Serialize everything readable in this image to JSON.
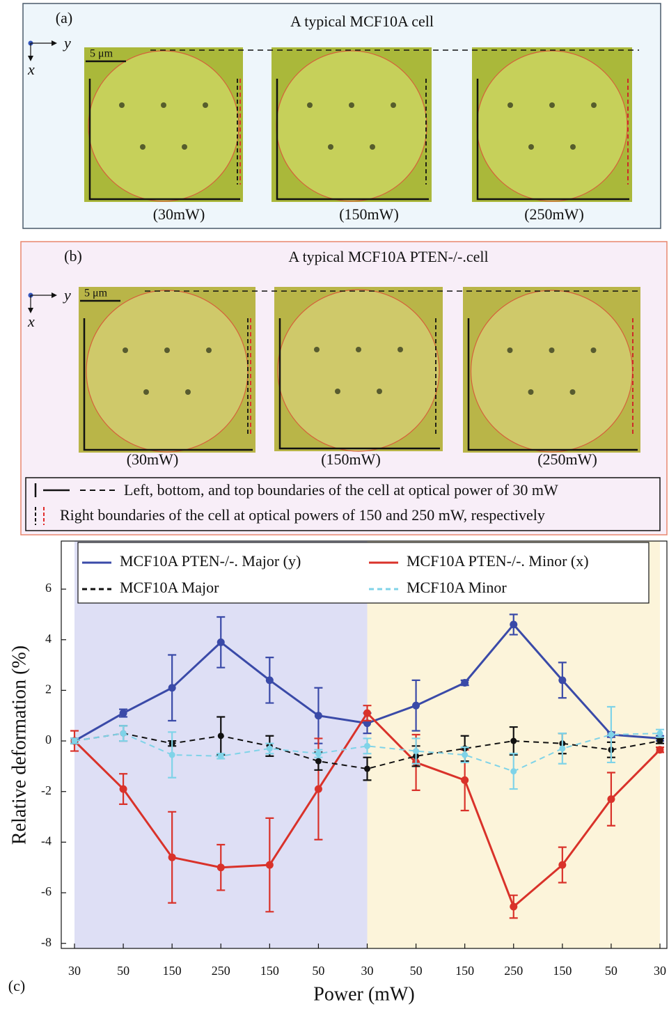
{
  "panel_a": {
    "label": "(a)",
    "title": "A typical MCF10A cell",
    "axis_y": "y",
    "axis_x": "x",
    "scale_bar": "5 μm",
    "powers": [
      "(30mW)",
      "(150mW)",
      "(250mW)"
    ]
  },
  "panel_b": {
    "label": "(b)",
    "title": "A typical MCF10A PTEN-/-.cell",
    "axis_y": "y",
    "axis_x": "x",
    "scale_bar": "5 μm",
    "powers": [
      "(30mW)",
      "(150mW)",
      "(250mW)"
    ]
  },
  "boundary_legend": [
    "Left, bottom, and top boundaries of the cell at optical power of 30 mW",
    "Right boundaries of the cell at optical powers of 150 and 250 mW, respectively"
  ],
  "chart_data": {
    "type": "line",
    "label": "(c)",
    "x_label": "Power (mW)",
    "y_label": "Relative deformation  (%)",
    "categories": [
      "30",
      "50",
      "150",
      "250",
      "150",
      "50",
      "30",
      "50",
      "150",
      "250",
      "150",
      "50",
      "30"
    ],
    "ylim": [
      -8.2,
      7.9
    ],
    "yticks": [
      -8,
      -6,
      -4,
      -2,
      0,
      2,
      4,
      6
    ],
    "series": [
      {
        "name": "MCF10A PTEN-/-. Major (y)",
        "color": "#3a4aa8",
        "linestyle": "solid",
        "values": [
          0,
          1.1,
          2.1,
          3.9,
          2.4,
          1.0,
          0.7,
          1.4,
          2.3,
          4.6,
          2.4,
          0.25,
          0.1
        ],
        "errors": [
          0.1,
          0.15,
          1.3,
          1.0,
          0.9,
          1.1,
          0.4,
          1.0,
          0.1,
          0.4,
          0.7,
          0.1,
          0.1
        ]
      },
      {
        "name": "MCF10A PTEN-/-. Minor (x)",
        "color": "#d9322a",
        "linestyle": "solid",
        "values": [
          0,
          -1.9,
          -4.6,
          -5.0,
          -4.9,
          -1.9,
          1.1,
          -0.85,
          -1.55,
          -6.55,
          -4.9,
          -2.3,
          -0.35
        ],
        "errors": [
          0.4,
          0.6,
          1.8,
          0.9,
          1.85,
          2.0,
          0.3,
          1.1,
          1.2,
          0.45,
          0.7,
          1.05,
          0.1
        ]
      },
      {
        "name": "MCF10A Major",
        "color": "#111111",
        "linestyle": "dashed",
        "values": [
          0,
          0.3,
          -0.1,
          0.2,
          -0.2,
          -0.8,
          -1.1,
          -0.6,
          -0.3,
          0,
          -0.1,
          -0.35,
          0
        ],
        "errors": [
          0.1,
          0.3,
          0.1,
          0.75,
          0.4,
          0.35,
          0.45,
          0.4,
          0.5,
          0.55,
          0.4,
          0.3,
          0.1
        ]
      },
      {
        "name": "MCF10A Minor",
        "color": "#7fd3e8",
        "linestyle": "dashed",
        "values": [
          0,
          0.3,
          -0.55,
          -0.6,
          -0.3,
          -0.5,
          -0.2,
          -0.4,
          -0.55,
          -1.2,
          -0.3,
          0.25,
          0.3
        ],
        "errors": [
          0.1,
          0.3,
          0.9,
          0.1,
          0.2,
          0.15,
          0.3,
          0.5,
          0.3,
          0.7,
          0.6,
          1.1,
          0.15
        ]
      }
    ]
  }
}
